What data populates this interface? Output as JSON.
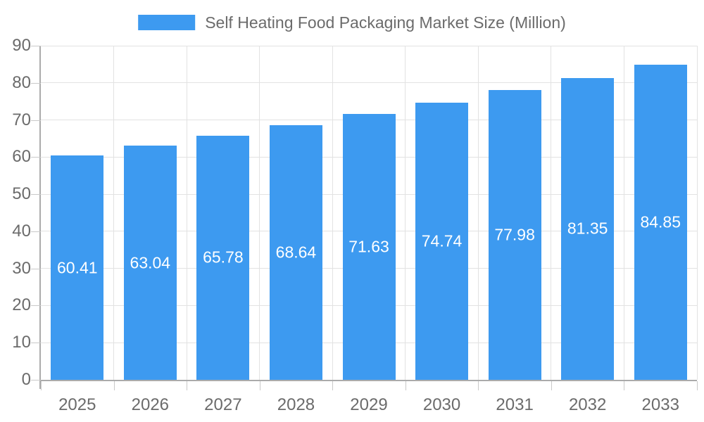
{
  "chart_data": {
    "type": "bar",
    "title": "Self Heating Food Packaging Market Size (Million)",
    "categories": [
      "2025",
      "2026",
      "2027",
      "2028",
      "2029",
      "2030",
      "2031",
      "2032",
      "2033"
    ],
    "values": [
      60.41,
      63.04,
      65.78,
      68.64,
      71.63,
      74.74,
      77.98,
      81.35,
      84.85
    ],
    "value_label_decimals": 2,
    "xlabel": "",
    "ylabel": "",
    "ylim": [
      0,
      90
    ],
    "yticks": [
      0,
      10,
      20,
      30,
      40,
      50,
      60,
      70,
      80,
      90
    ],
    "grid": true,
    "legend_position": "top-center",
    "value_labels_position": "inside-center"
  },
  "colors": {
    "bar": "#3d9af0",
    "bar_value_label": "#ffffff",
    "gridline": "#e2e2e2",
    "axis_line": "#ababab",
    "tick": "#c9c9c9",
    "axis_text": "#6b6b6b",
    "background": "#ffffff"
  }
}
